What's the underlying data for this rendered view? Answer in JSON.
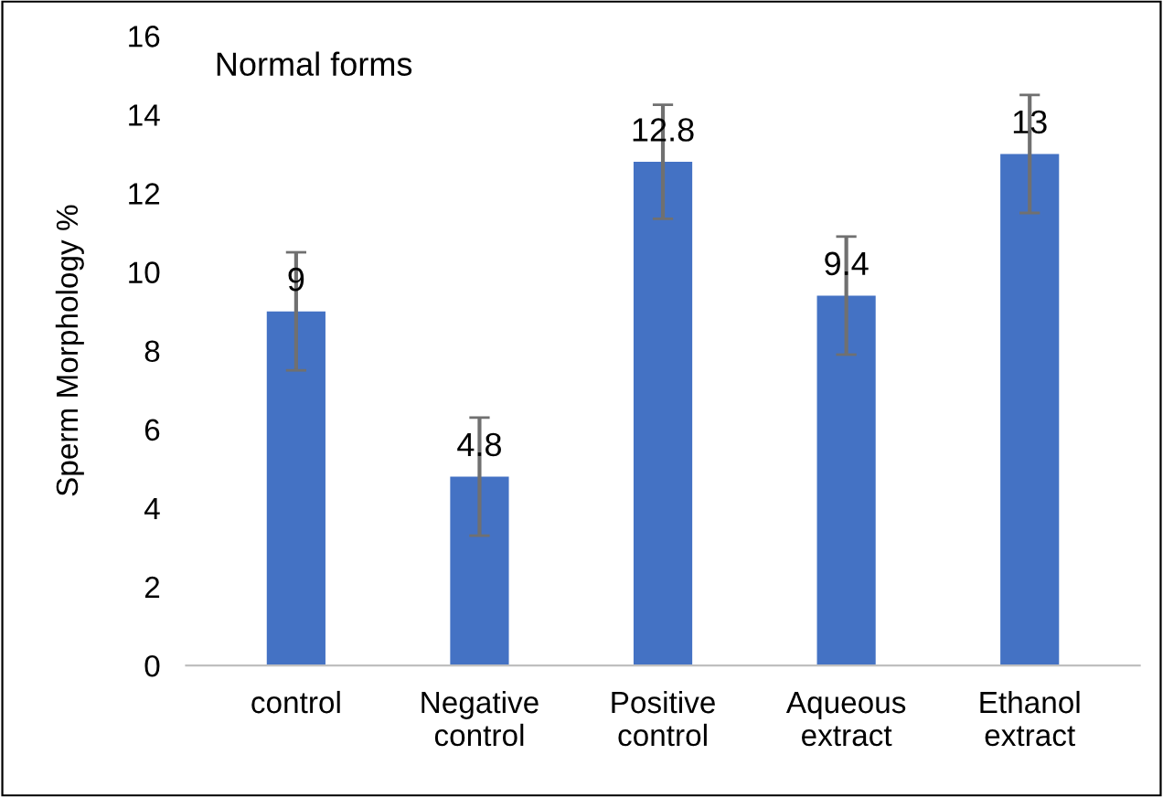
{
  "chart_data": {
    "type": "bar",
    "ylabel": "Sperm Morphology %",
    "categories": [
      "control",
      "Negative\ncontrol",
      "Positive\ncontrol",
      "Aqueous\nextract",
      "Ethanol\nextract"
    ],
    "values": [
      9,
      4.8,
      12.8,
      9.4,
      13
    ],
    "errors": [
      1.5,
      1.5,
      1.45,
      1.5,
      1.5
    ],
    "color": "#4472c4",
    "data_labels": true,
    "annotations": [
      "Normal forms"
    ],
    "ylim": [
      0,
      16
    ],
    "yticks": [
      0,
      2,
      4,
      6,
      8,
      10,
      12,
      14,
      16
    ],
    "grid": false
  }
}
